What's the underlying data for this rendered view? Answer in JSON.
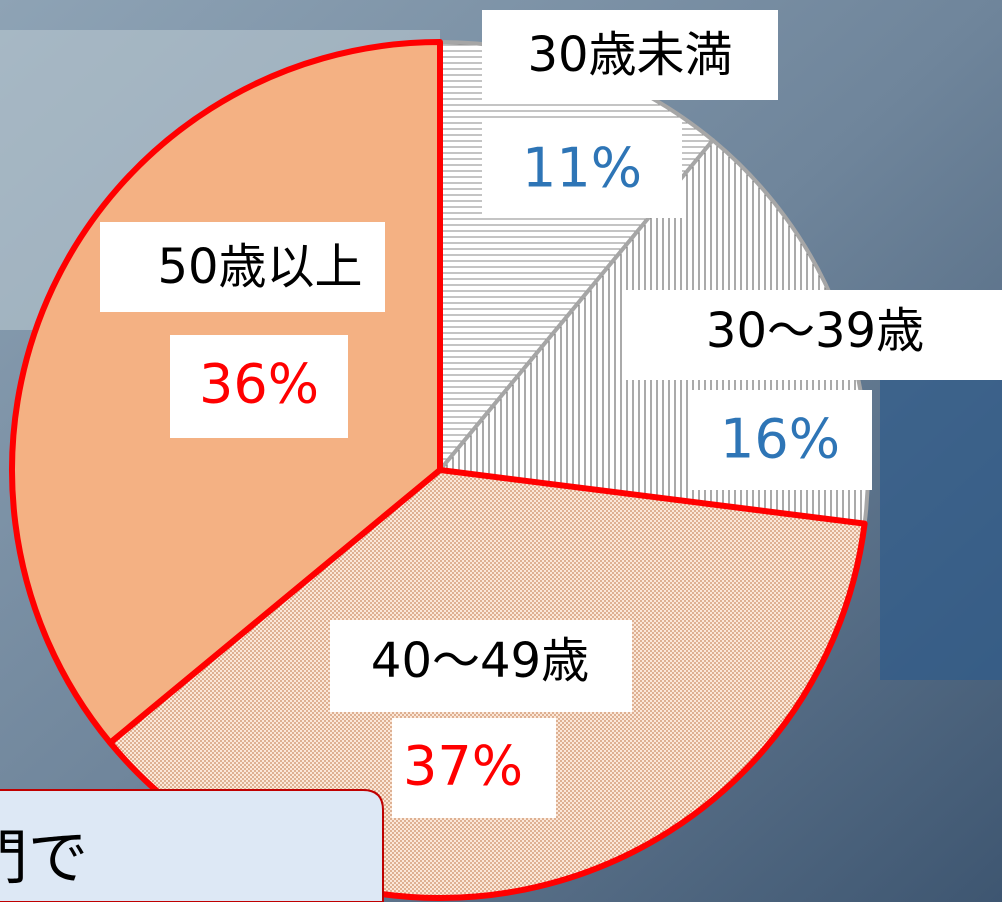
{
  "chart_data": {
    "type": "pie",
    "categories": [
      "30歳未満",
      "30〜39歳",
      "40〜49歳",
      "50歳以上"
    ],
    "values": [
      11,
      16,
      37,
      36
    ],
    "value_labels": [
      "11%",
      "16%",
      "37%",
      "36%"
    ],
    "patterns": [
      "horizontal",
      "vertical",
      "dots",
      "none"
    ],
    "colors": [
      "#ffffff",
      "#ffffff",
      "#f8d9c2",
      "#f4b183"
    ],
    "stroke_colors": [
      "#a6a6a6",
      "#a6a6a6",
      "#ff0000",
      "#ff0000"
    ],
    "label_colors": [
      "#2e75b6",
      "#2e75b6",
      "#ff0000",
      "#ff0000"
    ],
    "annotation": "門で"
  }
}
